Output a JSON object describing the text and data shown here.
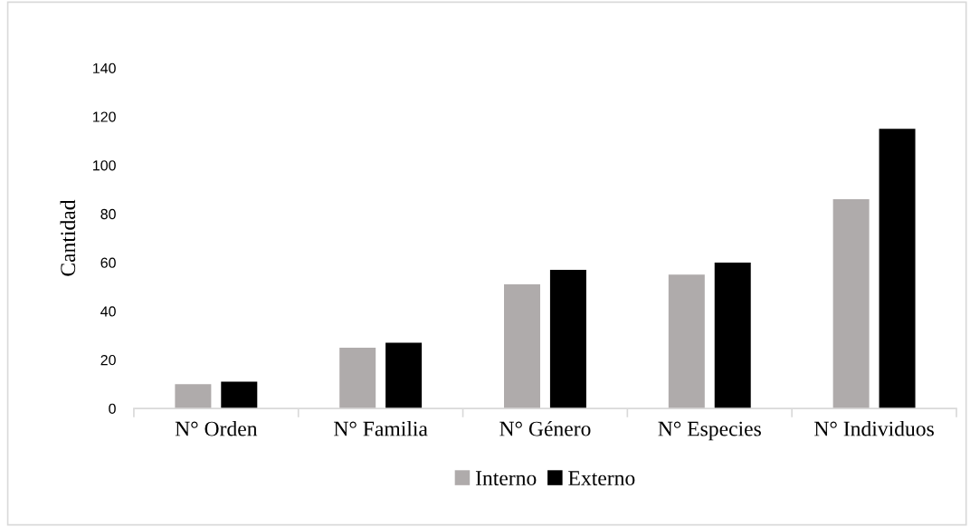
{
  "chart_data": {
    "type": "bar",
    "categories": [
      "N° Orden",
      "N° Familia",
      "N° Género",
      "N° Especies",
      "N° Individuos"
    ],
    "series": [
      {
        "name": "Interno",
        "color": "#afabab",
        "values": [
          10,
          25,
          51,
          55,
          86
        ]
      },
      {
        "name": "Externo",
        "color": "#000000",
        "values": [
          11,
          27,
          57,
          60,
          115
        ]
      }
    ],
    "ylabel": "Cantidad",
    "ylim": [
      0,
      140
    ],
    "yticks": [
      0,
      20,
      40,
      60,
      80,
      100,
      120,
      140
    ],
    "grid": false,
    "legend": "bottom"
  }
}
